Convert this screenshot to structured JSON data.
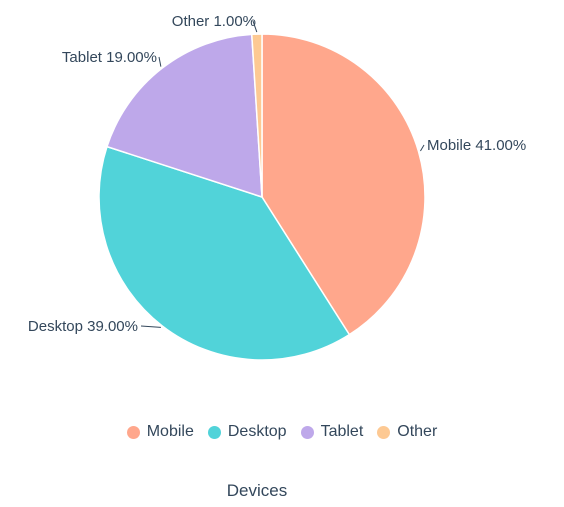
{
  "chart_data": {
    "type": "pie",
    "categories": [
      "Mobile",
      "Desktop",
      "Tablet",
      "Other"
    ],
    "values": [
      41.0,
      39.0,
      19.0,
      1.0
    ],
    "unit": "%",
    "slice_labels": [
      "Mobile 41.00%",
      "Desktop 39.00%",
      "Tablet 19.00%",
      "Other 1.00%"
    ],
    "colors": [
      "#ffa78c",
      "#51d3d9",
      "#bea8ea",
      "#fdc993"
    ],
    "legend": [
      "Mobile",
      "Desktop",
      "Tablet",
      "Other"
    ],
    "legend_position": "bottom",
    "title": "",
    "xlabel": "Devices"
  }
}
